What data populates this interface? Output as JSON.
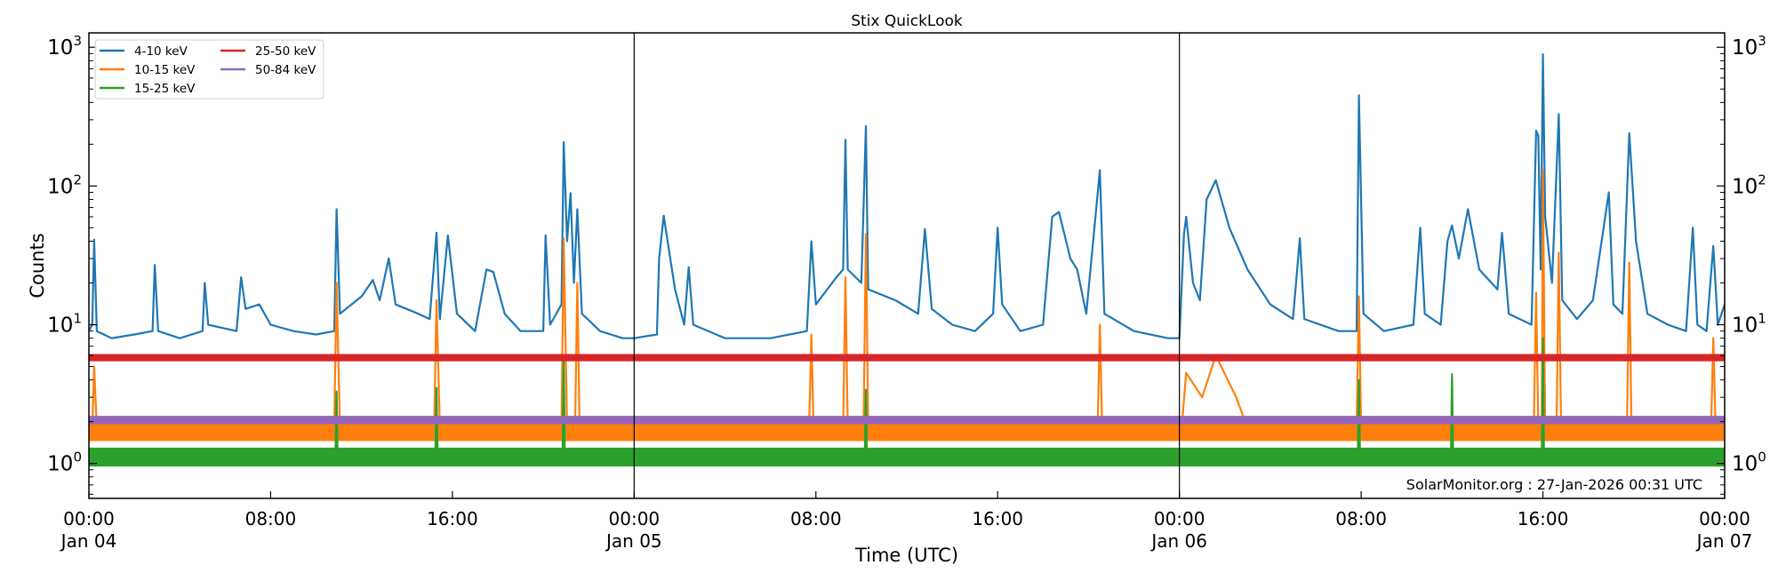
{
  "chart_data": {
    "type": "line",
    "title": "Stix QuickLook",
    "xlabel": "Time (UTC)",
    "ylabel": "Counts",
    "yscale": "log",
    "xlim_hours": [
      0,
      72
    ],
    "ylim": [
      0.56,
      1270
    ],
    "grid": false,
    "legend_position": "top-left",
    "annotation": "SolarMonitor.org : 27-Jan-2026 00:31 UTC",
    "x_ticks": [
      {
        "hour": 0,
        "time": "00:00",
        "date": "Jan 04"
      },
      {
        "hour": 8,
        "time": "08:00",
        "date": ""
      },
      {
        "hour": 16,
        "time": "16:00",
        "date": ""
      },
      {
        "hour": 24,
        "time": "00:00",
        "date": "Jan 05"
      },
      {
        "hour": 32,
        "time": "08:00",
        "date": ""
      },
      {
        "hour": 40,
        "time": "16:00",
        "date": ""
      },
      {
        "hour": 48,
        "time": "00:00",
        "date": "Jan 06"
      },
      {
        "hour": 56,
        "time": "08:00",
        "date": ""
      },
      {
        "hour": 64,
        "time": "16:00",
        "date": ""
      },
      {
        "hour": 72,
        "time": "00:00",
        "date": "Jan 07"
      }
    ],
    "y_ticks": [
      {
        "value": 1,
        "base": "10",
        "exp": "0"
      },
      {
        "value": 10,
        "base": "10",
        "exp": "1"
      },
      {
        "value": 100,
        "base": "10",
        "exp": "2"
      },
      {
        "value": 1000,
        "base": "10",
        "exp": "3"
      }
    ],
    "day_boundaries_hours": [
      24,
      48
    ],
    "x_unit": "hours since 00:00 Jan 04 (UTC)",
    "series": [
      {
        "name": "4-10 keV",
        "color": "#1f77b4",
        "points": [
          [
            0,
            9
          ],
          [
            0.15,
            10
          ],
          [
            0.23,
            41
          ],
          [
            0.35,
            9
          ],
          [
            1,
            8
          ],
          [
            2,
            8.5
          ],
          [
            2.8,
            9
          ],
          [
            2.9,
            27
          ],
          [
            3.05,
            9
          ],
          [
            4,
            8
          ],
          [
            5,
            9
          ],
          [
            5.1,
            20
          ],
          [
            5.25,
            10
          ],
          [
            6.5,
            9
          ],
          [
            6.7,
            22
          ],
          [
            6.9,
            13
          ],
          [
            7.5,
            14
          ],
          [
            8,
            10
          ],
          [
            9,
            9
          ],
          [
            10,
            8.5
          ],
          [
            10.8,
            9
          ],
          [
            10.9,
            68
          ],
          [
            11.05,
            12
          ],
          [
            12,
            16
          ],
          [
            12.5,
            21
          ],
          [
            12.8,
            15
          ],
          [
            13.2,
            30
          ],
          [
            13.5,
            14
          ],
          [
            14.5,
            12
          ],
          [
            15,
            11
          ],
          [
            15.3,
            46
          ],
          [
            15.45,
            11
          ],
          [
            15.8,
            44
          ],
          [
            16.2,
            12
          ],
          [
            17,
            9
          ],
          [
            17.5,
            25
          ],
          [
            17.8,
            24
          ],
          [
            18.3,
            12
          ],
          [
            19,
            9
          ],
          [
            20,
            9
          ],
          [
            20.1,
            44
          ],
          [
            20.3,
            10
          ],
          [
            20.8,
            14
          ],
          [
            20.9,
            207
          ],
          [
            21.05,
            40
          ],
          [
            21.2,
            89
          ],
          [
            21.35,
            20
          ],
          [
            21.5,
            68
          ],
          [
            21.7,
            12
          ],
          [
            22.5,
            9
          ],
          [
            23.5,
            8
          ],
          [
            24,
            8
          ],
          [
            25,
            8.5
          ],
          [
            25.1,
            30
          ],
          [
            25.3,
            61
          ],
          [
            25.8,
            18
          ],
          [
            26.2,
            10
          ],
          [
            26.4,
            26
          ],
          [
            26.6,
            10
          ],
          [
            28,
            8
          ],
          [
            30,
            8
          ],
          [
            31.6,
            9
          ],
          [
            31.8,
            40
          ],
          [
            32,
            14
          ],
          [
            32.9,
            22
          ],
          [
            33.2,
            25
          ],
          [
            33.3,
            215
          ],
          [
            33.4,
            25
          ],
          [
            34,
            20
          ],
          [
            34.2,
            270
          ],
          [
            34.3,
            18
          ],
          [
            35.5,
            15
          ],
          [
            36.5,
            12
          ],
          [
            36.8,
            49
          ],
          [
            37.1,
            13
          ],
          [
            38,
            10
          ],
          [
            39,
            9
          ],
          [
            39.8,
            12
          ],
          [
            40,
            50
          ],
          [
            40.2,
            14
          ],
          [
            41,
            9
          ],
          [
            42,
            10
          ],
          [
            42.4,
            60
          ],
          [
            42.7,
            65
          ],
          [
            43.2,
            30
          ],
          [
            43.5,
            25
          ],
          [
            43.9,
            12
          ],
          [
            44.5,
            130
          ],
          [
            44.7,
            12
          ],
          [
            46,
            9
          ],
          [
            47.5,
            8
          ],
          [
            48,
            8
          ],
          [
            48.2,
            45
          ],
          [
            48.3,
            60
          ],
          [
            48.6,
            20
          ],
          [
            48.9,
            15
          ],
          [
            49.2,
            80
          ],
          [
            49.6,
            110
          ],
          [
            50.2,
            50
          ],
          [
            51,
            25
          ],
          [
            52,
            14
          ],
          [
            53,
            11
          ],
          [
            53.3,
            42
          ],
          [
            53.5,
            11
          ],
          [
            55,
            9
          ],
          [
            55.8,
            9
          ],
          [
            55.9,
            450
          ],
          [
            56.1,
            12
          ],
          [
            57,
            9
          ],
          [
            58.3,
            10
          ],
          [
            58.6,
            50
          ],
          [
            58.8,
            12
          ],
          [
            59.5,
            10
          ],
          [
            59.8,
            40
          ],
          [
            60,
            52
          ],
          [
            60.3,
            30
          ],
          [
            60.7,
            68
          ],
          [
            61.2,
            25
          ],
          [
            62,
            18
          ],
          [
            62.2,
            46
          ],
          [
            62.5,
            12
          ],
          [
            63.5,
            10
          ],
          [
            63.7,
            250
          ],
          [
            63.8,
            230
          ],
          [
            63.9,
            25
          ],
          [
            64.0,
            890
          ],
          [
            64.1,
            60
          ],
          [
            64.4,
            20
          ],
          [
            64.7,
            330
          ],
          [
            64.85,
            15
          ],
          [
            65.5,
            11
          ],
          [
            66.2,
            15
          ],
          [
            66.9,
            90
          ],
          [
            67.1,
            14
          ],
          [
            67.5,
            12
          ],
          [
            67.8,
            240
          ],
          [
            68.1,
            40
          ],
          [
            68.6,
            12
          ],
          [
            69.5,
            10
          ],
          [
            70.3,
            9
          ],
          [
            70.6,
            50
          ],
          [
            70.8,
            10
          ],
          [
            71.2,
            9
          ],
          [
            71.5,
            37
          ],
          [
            71.7,
            10
          ],
          [
            72,
            14
          ]
        ]
      },
      {
        "name": "10-15 keV",
        "color": "#ff7f0e",
        "noise_band": [
          1.45,
          2.2
        ],
        "points": [
          [
            0,
            1.8
          ],
          [
            0.15,
            1.8
          ],
          [
            0.23,
            5
          ],
          [
            0.35,
            1.8
          ],
          [
            10.8,
            1.8
          ],
          [
            10.9,
            20
          ],
          [
            11.05,
            1.8
          ],
          [
            15.2,
            1.8
          ],
          [
            15.3,
            15
          ],
          [
            15.45,
            1.8
          ],
          [
            20.8,
            1.8
          ],
          [
            20.9,
            42
          ],
          [
            21.05,
            1.8
          ],
          [
            21.4,
            1.8
          ],
          [
            21.5,
            20
          ],
          [
            21.6,
            1.8
          ],
          [
            31.7,
            1.8
          ],
          [
            31.8,
            8.5
          ],
          [
            31.9,
            1.8
          ],
          [
            33.2,
            1.8
          ],
          [
            33.3,
            22
          ],
          [
            33.4,
            1.8
          ],
          [
            34.1,
            1.8
          ],
          [
            34.2,
            45
          ],
          [
            34.3,
            1.8
          ],
          [
            44.4,
            1.8
          ],
          [
            44.5,
            10
          ],
          [
            44.6,
            1.8
          ],
          [
            48.1,
            1.8
          ],
          [
            48.3,
            4.5
          ],
          [
            49,
            3
          ],
          [
            49.6,
            6
          ],
          [
            50.5,
            3
          ],
          [
            51,
            1.8
          ],
          [
            55.8,
            1.8
          ],
          [
            55.9,
            16
          ],
          [
            56,
            1.8
          ],
          [
            63.6,
            1.8
          ],
          [
            63.7,
            17
          ],
          [
            63.8,
            1.8
          ],
          [
            63.95,
            1.8
          ],
          [
            64,
            130
          ],
          [
            64.1,
            1.8
          ],
          [
            64.6,
            1.8
          ],
          [
            64.7,
            33
          ],
          [
            64.8,
            1.8
          ],
          [
            67.7,
            1.8
          ],
          [
            67.8,
            28
          ],
          [
            67.9,
            1.8
          ],
          [
            71.4,
            1.8
          ],
          [
            71.5,
            8
          ],
          [
            71.6,
            1.8
          ],
          [
            72,
            1.8
          ]
        ]
      },
      {
        "name": "15-25 keV",
        "color": "#2ca02c",
        "noise_band": [
          0.95,
          1.3
        ],
        "points": [
          [
            0,
            1.1
          ],
          [
            10.85,
            1.1
          ],
          [
            10.9,
            3.3
          ],
          [
            10.95,
            1.1
          ],
          [
            15.25,
            1.1
          ],
          [
            15.3,
            3.5
          ],
          [
            15.35,
            1.1
          ],
          [
            20.85,
            1.1
          ],
          [
            20.9,
            5.5
          ],
          [
            20.95,
            1.1
          ],
          [
            34.15,
            1.1
          ],
          [
            34.2,
            3.4
          ],
          [
            34.25,
            1.1
          ],
          [
            55.85,
            1.1
          ],
          [
            55.9,
            4
          ],
          [
            55.95,
            1.1
          ],
          [
            59.95,
            1.1
          ],
          [
            60,
            4.4
          ],
          [
            60.05,
            1.1
          ],
          [
            63.95,
            1.1
          ],
          [
            64,
            8
          ],
          [
            64.05,
            1.1
          ],
          [
            72,
            1.1
          ]
        ]
      },
      {
        "name": "25-50 keV",
        "color": "#d62728",
        "noise_band": [
          5.45,
          6.15
        ],
        "points": [
          [
            0,
            5.8
          ],
          [
            72,
            5.8
          ]
        ]
      },
      {
        "name": "50-84 keV",
        "color": "#9467bd",
        "noise_band": [
          1.92,
          2.2
        ],
        "points": [
          [
            0,
            2.05
          ],
          [
            72,
            2.05
          ]
        ]
      }
    ]
  }
}
